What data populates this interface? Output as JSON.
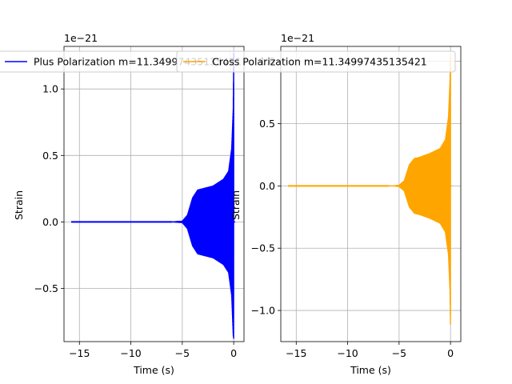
{
  "chart_data": [
    {
      "type": "line",
      "series": [
        {
          "name": "Plus Polarization m=11.34997435135421",
          "color": "#0000ff",
          "envelope": {
            "t": [
              -15.8,
              -10,
              -6,
              -5,
              -4.5,
              -4.0,
              -3.5,
              -3.0,
              -2.0,
              -1.0,
              -0.5,
              -0.2,
              -0.05,
              0.0
            ],
            "upper": [
              0.0,
              0.0,
              0.0,
              0.005,
              0.05,
              0.18,
              0.24,
              0.25,
              0.27,
              0.32,
              0.38,
              0.55,
              0.85,
              1.27
            ],
            "lower": [
              0.0,
              0.0,
              0.0,
              -0.005,
              -0.05,
              -0.18,
              -0.24,
              -0.25,
              -0.27,
              -0.32,
              -0.38,
              -0.55,
              -0.85,
              -0.88
            ]
          },
          "post_t": [
            0.0,
            0.15
          ],
          "post_v": [
            0.0,
            0.0
          ]
        }
      ],
      "xlabel": "Time (s)",
      "ylabel": "Strain",
      "xlim": [
        -16.5,
        1.0
      ],
      "ylim": [
        -0.9,
        1.32
      ],
      "xticks": [
        -15,
        -10,
        -5,
        0
      ],
      "xtick_labels": [
        "−15",
        "−10",
        "−5",
        "0"
      ],
      "yticks": [
        -0.5,
        0.0,
        0.5,
        1.0
      ],
      "ytick_labels": [
        "−0.5",
        "0.0",
        "0.5",
        "1.0"
      ],
      "offset_text": "1e−21",
      "grid": true,
      "legend": "top-center"
    },
    {
      "type": "line",
      "series": [
        {
          "name": "Cross Polarization m=11.34997435135421",
          "color": "#ffa500",
          "envelope": {
            "t": [
              -15.8,
              -10,
              -6,
              -5.5,
              -5.0,
              -4.5,
              -4.0,
              -3.5,
              -3.0,
              -2.0,
              -1.0,
              -0.5,
              -0.2,
              -0.05,
              0.0
            ],
            "upper": [
              0.0,
              0.0,
              0.0,
              0.0,
              0.005,
              0.04,
              0.17,
              0.22,
              0.23,
              0.26,
              0.3,
              0.37,
              0.55,
              0.85,
              1.05
            ],
            "lower": [
              0.0,
              0.0,
              0.0,
              0.0,
              -0.005,
              -0.04,
              -0.17,
              -0.22,
              -0.23,
              -0.26,
              -0.3,
              -0.37,
              -0.55,
              -0.85,
              -1.15
            ]
          },
          "post_t": [
            0.0,
            0.15
          ],
          "post_v": [
            0.0,
            0.0
          ]
        }
      ],
      "xlabel": "Time (s)",
      "ylabel": "Strain",
      "xlim": [
        -16.5,
        1.0
      ],
      "ylim": [
        -1.25,
        1.12
      ],
      "xticks": [
        -15,
        -10,
        -5,
        0
      ],
      "xtick_labels": [
        "−15",
        "−10",
        "−5",
        "0"
      ],
      "yticks": [
        -1.0,
        -0.5,
        0.0,
        0.5,
        1.0
      ],
      "ytick_labels": [
        "−1.0",
        "−0.5",
        "0.0",
        "0.5",
        "1.0"
      ],
      "offset_text": "1e−21",
      "grid": true,
      "legend": "top-center"
    }
  ]
}
